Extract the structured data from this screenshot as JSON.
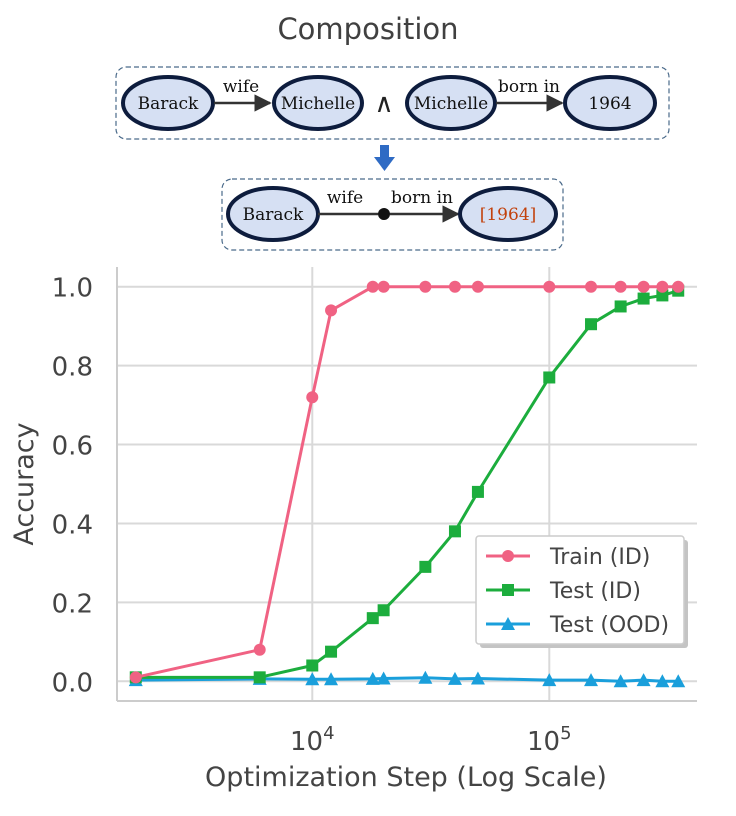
{
  "diagram": {
    "title": "Composition",
    "premise1": {
      "subject": "Barack",
      "relation": "wife",
      "object": "Michelle"
    },
    "connector": "∧",
    "premise2": {
      "subject": "Michelle",
      "relation": "born in",
      "object": "1964"
    },
    "arrow": "down-arrow",
    "conclusion": {
      "subject": "Barack",
      "relation1": "wife",
      "relation2": "born in",
      "object": "[1964]"
    },
    "colors": {
      "node_fill": "#d6e0f3",
      "node_border": "#0d1c3d",
      "answer_text": "#c2410c",
      "arrow": "#2f6bc4"
    }
  },
  "chart_data": {
    "type": "line",
    "xlabel": "Optimization Step (Log Scale)",
    "ylabel": "Accuracy",
    "xscale": "log",
    "xlim": [
      1500,
      420000
    ],
    "ylim": [
      -0.05,
      1.05
    ],
    "xticks": [
      10000,
      100000
    ],
    "xtick_labels": [
      {
        "base": "10",
        "exp": "4"
      },
      {
        "base": "10",
        "exp": "5"
      }
    ],
    "yticks": [
      0.0,
      0.2,
      0.4,
      0.6,
      0.8,
      1.0
    ],
    "ytick_labels": [
      "0.0",
      "0.2",
      "0.4",
      "0.6",
      "0.8",
      "1.0"
    ],
    "grid": true,
    "legend_position": "lower-right",
    "series": [
      {
        "name": "Train (ID)",
        "color": "#f06283",
        "marker": "circle",
        "x": [
          1800,
          6000,
          10000,
          12000,
          18000,
          20000,
          30000,
          40000,
          50000,
          100000,
          150000,
          200000,
          250000,
          300000,
          350000
        ],
        "y": [
          0.01,
          0.08,
          0.72,
          0.94,
          1.0,
          1.0,
          1.0,
          1.0,
          1.0,
          1.0,
          1.0,
          1.0,
          1.0,
          1.0,
          1.0
        ]
      },
      {
        "name": "Test (ID)",
        "color": "#1cad3d",
        "marker": "square",
        "x": [
          1800,
          6000,
          10000,
          12000,
          18000,
          20000,
          30000,
          40000,
          50000,
          100000,
          150000,
          200000,
          250000,
          300000,
          350000
        ],
        "y": [
          0.01,
          0.01,
          0.04,
          0.075,
          0.16,
          0.18,
          0.29,
          0.38,
          0.48,
          0.77,
          0.905,
          0.95,
          0.97,
          0.978,
          0.99
        ]
      },
      {
        "name": "Test (OOD)",
        "color": "#1a9fdb",
        "marker": "triangle",
        "x": [
          1800,
          6000,
          10000,
          12000,
          18000,
          20000,
          30000,
          40000,
          50000,
          100000,
          150000,
          200000,
          250000,
          300000,
          350000
        ],
        "y": [
          0.003,
          0.006,
          0.005,
          0.005,
          0.006,
          0.007,
          0.009,
          0.006,
          0.007,
          0.003,
          0.003,
          0.0,
          0.003,
          0.0,
          0.0
        ]
      }
    ]
  }
}
